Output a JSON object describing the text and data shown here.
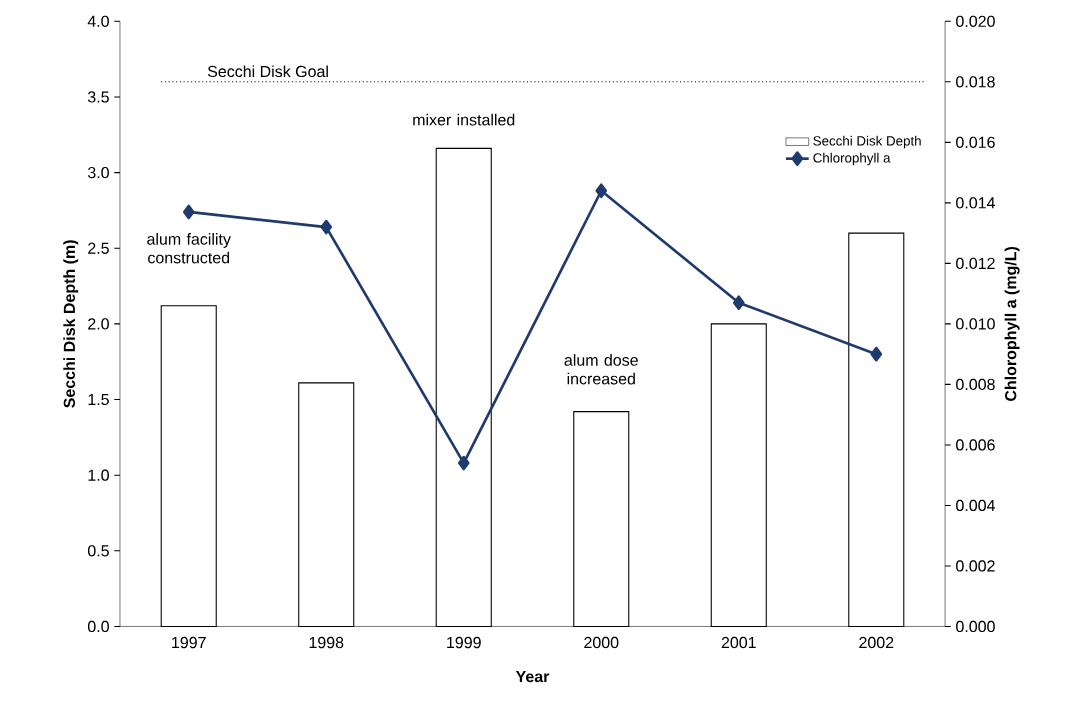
{
  "chart_data": {
    "type": "bar",
    "xlabel": "Year",
    "ylabel": "Secchi Disk Depth (m)",
    "y2label": "Chlorophyll a (mg/L)",
    "categories": [
      "1997",
      "1998",
      "1999",
      "2000",
      "2001",
      "2002"
    ],
    "series": [
      {
        "name": "Secchi Disk Depth",
        "color": "#ffffff",
        "values": [
          2.12,
          1.61,
          3.16,
          1.42,
          2.0,
          2.6
        ]
      },
      {
        "name": "Chlorophyll a",
        "type": "line",
        "axis": "y2",
        "color": "#1f3b6e",
        "marker": "diamond",
        "values": [
          0.0137,
          0.0132,
          0.0054,
          0.0144,
          0.0107,
          0.009
        ]
      }
    ],
    "ylim": [
      0,
      4
    ],
    "yticks": [
      {
        "value": 0,
        "label": "0.0"
      },
      {
        "value": 0.5,
        "label": "0.5"
      },
      {
        "value": 1,
        "label": "1.0"
      },
      {
        "value": 1.5,
        "label": "1.5"
      },
      {
        "value": 2,
        "label": "2.0"
      },
      {
        "value": 2.5,
        "label": "2.5"
      },
      {
        "value": 3,
        "label": "3.0"
      },
      {
        "value": 3.5,
        "label": "3.5"
      },
      {
        "value": 4,
        "label": "4.0"
      }
    ],
    "y2lim": [
      0,
      0.02
    ],
    "y2ticks": [
      {
        "value": 0,
        "label": "0.000"
      },
      {
        "value": 0.002,
        "label": "0.002"
      },
      {
        "value": 0.004,
        "label": "0.004"
      },
      {
        "value": 0.006,
        "label": "0.006"
      },
      {
        "value": 0.008,
        "label": "0.008"
      },
      {
        "value": 0.01,
        "label": "0.010"
      },
      {
        "value": 0.012,
        "label": "0.012"
      },
      {
        "value": 0.014,
        "label": "0.014"
      },
      {
        "value": 0.016,
        "label": "0.016"
      },
      {
        "value": 0.018,
        "label": "0.018"
      },
      {
        "value": 0.02,
        "label": "0.020"
      }
    ],
    "ref_lines": [
      {
        "axis": "y",
        "value": 3.6,
        "label": "Secchi Disk Goal",
        "line_style": "dotted"
      }
    ],
    "annotations": [
      "alum facility constructed",
      "mixer installed",
      "alum dose increased"
    ],
    "legend": "top right",
    "grid": false
  }
}
